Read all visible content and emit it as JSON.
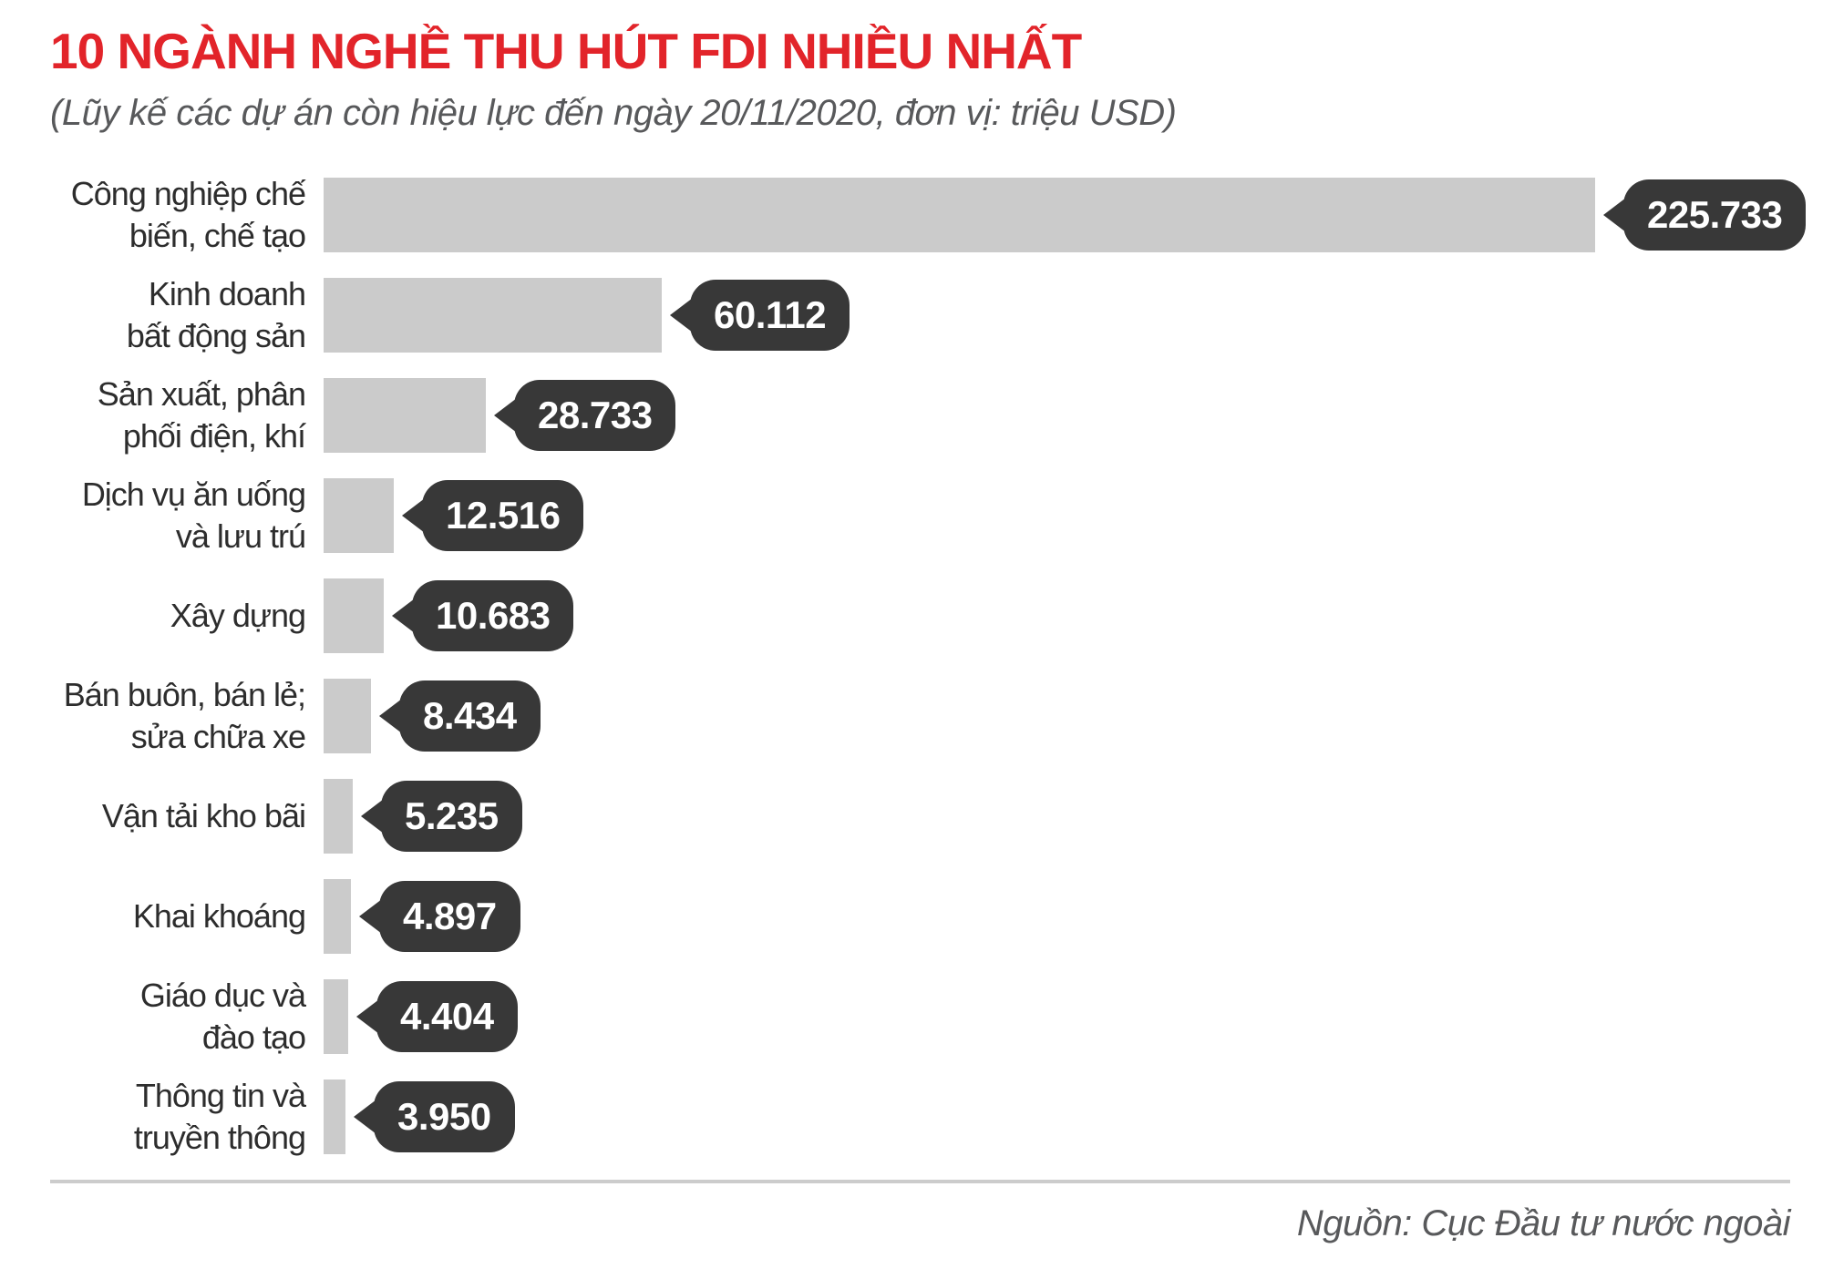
{
  "header": {
    "title": "10 NGÀNH NGHỀ THU HÚT FDI NHIỀU NHẤT",
    "subtitle": "(Lũy kế các dự án còn hiệu lực đến ngày 20/11/2020, đơn vị: triệu USD)"
  },
  "footer": {
    "source": "Nguồn: Cục Đầu tư nước ngoài"
  },
  "colors": {
    "title_red": "#e2242a",
    "bar_gray": "#cbcbcb",
    "badge_dark": "#383838",
    "badge_text": "#ffffff",
    "label_text": "#2d2d2d",
    "muted_text": "#58595b",
    "divider_gray": "#cccccc"
  },
  "chart_data": {
    "type": "bar",
    "orientation": "horizontal",
    "title": "10 NGÀNH NGHỀ THU HÚT FDI NHIỀU NHẤT",
    "subtitle": "(Lũy kế các dự án còn hiệu lực đến ngày 20/11/2020, đơn vị: triệu USD)",
    "source": "Nguồn: Cục Đầu tư nước ngoài",
    "unit_label": "triệu USD",
    "xlim": [
      0,
      225733
    ],
    "grid": false,
    "legend": false,
    "categories": [
      "Công nghiệp chế\nbiến, chế tạo",
      "Kinh doanh\nbất động sản",
      "Sản xuất, phân\nphối điện, khí",
      "Dịch vụ ăn uống\nvà lưu trú",
      "Xây dựng",
      "Bán buôn, bán lẻ;\nsửa chữa xe",
      "Vận tải kho bãi",
      "Khai khoáng",
      "Giáo dục và\nđào tạo",
      "Thông tin và\ntruyền thông"
    ],
    "values": [
      225733,
      60112,
      28733,
      12516,
      10683,
      8434,
      5235,
      4897,
      4404,
      3950
    ],
    "value_labels": [
      "225.733",
      "60.112",
      "28.733",
      "12.516",
      "10.683",
      "8.434",
      "5.235",
      "4.897",
      "4.404",
      "3.950"
    ]
  }
}
